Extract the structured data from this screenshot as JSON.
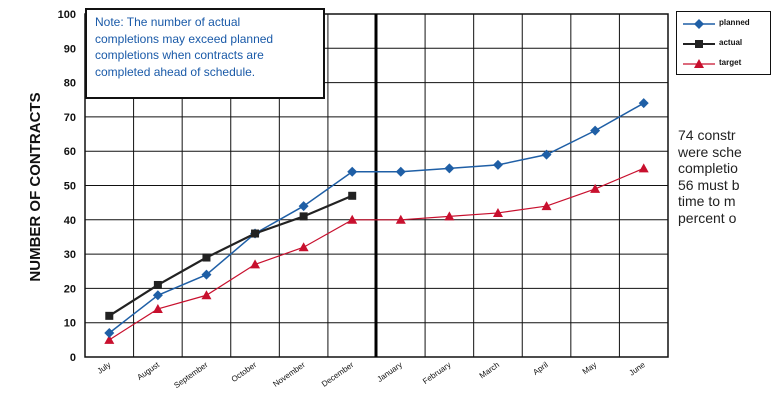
{
  "note": {
    "lines": [
      "Note: The number of actual",
      "completions may exceed planned",
      "completions when contracts are",
      "completed ahead of schedule."
    ]
  },
  "legend": {
    "planned": "planned",
    "actual": "actual",
    "target": "target"
  },
  "side_text": {
    "lines": [
      "74 constr",
      "were sche",
      "completio",
      "56 must b",
      "time to m",
      "percent o"
    ]
  },
  "colors": {
    "planned": "#1f5fa6",
    "actual": "#222222",
    "target": "#c8102e",
    "note_text": "#1a5aa8",
    "grid": "#111111"
  },
  "chart_data": {
    "type": "line",
    "ylabel": "NUMBER OF CONTRACTS",
    "xlabel": "",
    "ylim": [
      0,
      100
    ],
    "yticks": [
      "0",
      "10",
      "20",
      "30",
      "40",
      "50",
      "60",
      "70",
      "80",
      "90",
      "100"
    ],
    "categories": [
      "July",
      "August",
      "September",
      "October",
      "November",
      "December",
      "January",
      "February",
      "March",
      "April",
      "May",
      "June"
    ],
    "grid": true,
    "legend_position": "top-right",
    "annotation": "vertical line at December",
    "series": [
      {
        "name": "planned",
        "marker": "diamond",
        "values": [
          7,
          18,
          24,
          36,
          44,
          54,
          54,
          55,
          56,
          59,
          66,
          74
        ]
      },
      {
        "name": "actual",
        "marker": "square",
        "values": [
          12,
          21,
          29,
          36,
          41,
          47,
          null,
          null,
          null,
          null,
          null,
          null
        ]
      },
      {
        "name": "target",
        "marker": "triangle",
        "values": [
          5,
          14,
          18,
          27,
          32,
          40,
          40,
          41,
          42,
          44,
          49,
          55
        ]
      }
    ]
  }
}
